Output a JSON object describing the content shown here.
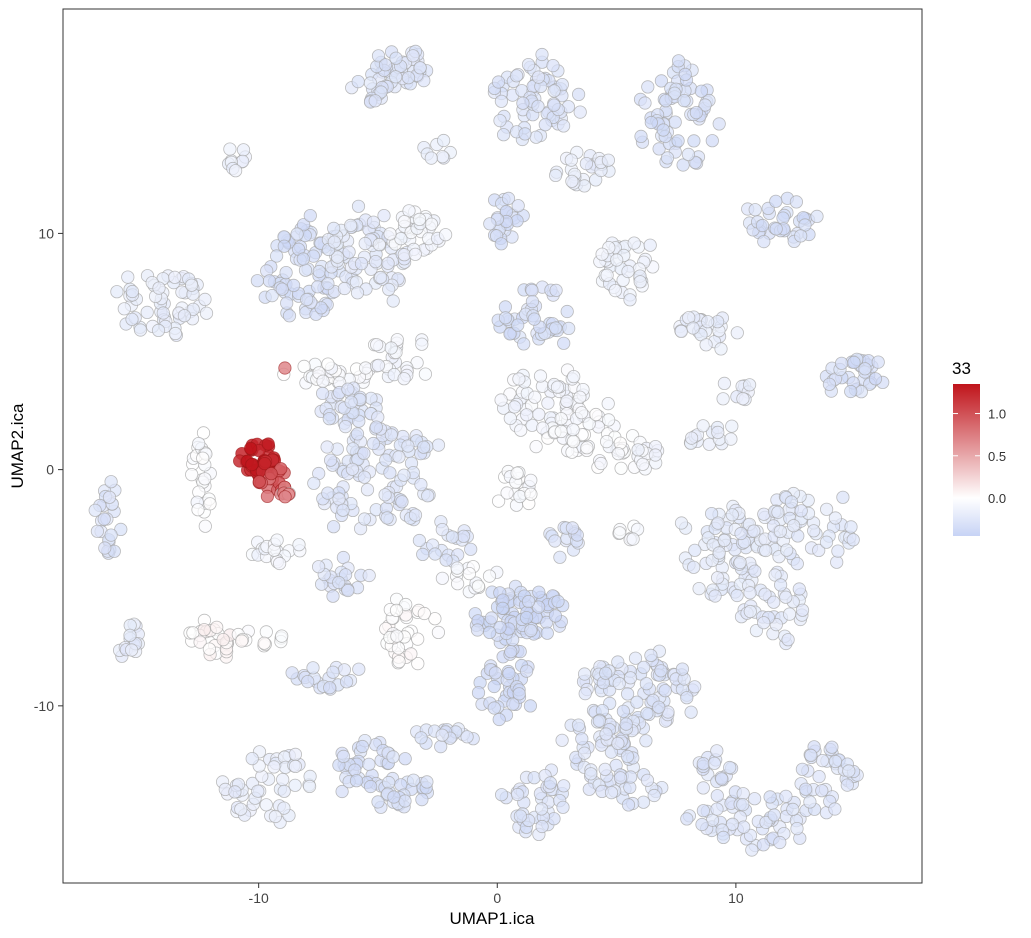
{
  "chart_data": {
    "type": "scatter",
    "title": "",
    "xlabel": "UMAP1.ica",
    "ylabel": "UMAP2.ica",
    "xlim": [
      -18.2,
      17.8
    ],
    "ylim": [
      -17.5,
      19.5
    ],
    "x_ticks": [
      -10,
      0,
      10
    ],
    "x_tick_labels": [
      "-10",
      "0",
      "10"
    ],
    "y_ticks": [
      -10,
      0,
      10
    ],
    "y_tick_labels": [
      "-10",
      "0",
      "10"
    ],
    "grid": false,
    "legend_position": "right",
    "color_scale": {
      "title": "33",
      "min": -0.45,
      "max": 1.35,
      "breaks": [
        1.0,
        0.5,
        0.0
      ],
      "break_labels": [
        "1.0",
        "0.5",
        "0.0"
      ],
      "low_color": "#c7d3f5",
      "mid_color": "#ffffff",
      "high_color": "#c0141b"
    },
    "clusters": [
      {
        "x": -4.0,
        "y": 17.0,
        "rx": 1.2,
        "ry": 0.9,
        "n": 40,
        "value": -0.3
      },
      {
        "x": -5.3,
        "y": 16.0,
        "rx": 0.8,
        "ry": 0.5,
        "n": 15,
        "value": -0.3
      },
      {
        "x": 1.6,
        "y": 15.5,
        "rx": 1.6,
        "ry": 1.8,
        "n": 70,
        "value": -0.3
      },
      {
        "x": 3.6,
        "y": 12.7,
        "rx": 1.2,
        "ry": 0.9,
        "n": 25,
        "value": -0.2
      },
      {
        "x": 7.5,
        "y": 15.0,
        "rx": 1.7,
        "ry": 2.1,
        "n": 70,
        "value": -0.35
      },
      {
        "x": -11.0,
        "y": 13.2,
        "rx": 0.5,
        "ry": 0.6,
        "n": 10,
        "value": -0.15
      },
      {
        "x": -2.4,
        "y": 13.5,
        "rx": 0.6,
        "ry": 0.5,
        "n": 8,
        "value": -0.2
      },
      {
        "x": 0.2,
        "y": 10.6,
        "rx": 0.9,
        "ry": 1.0,
        "n": 25,
        "value": -0.35
      },
      {
        "x": 11.9,
        "y": 10.5,
        "rx": 1.4,
        "ry": 1.0,
        "n": 35,
        "value": -0.35
      },
      {
        "x": -8.3,
        "y": 8.3,
        "rx": 1.7,
        "ry": 2.0,
        "n": 80,
        "value": -0.35
      },
      {
        "x": -5.5,
        "y": 9.0,
        "rx": 1.9,
        "ry": 2.0,
        "n": 80,
        "value": -0.25
      },
      {
        "x": -3.6,
        "y": 10.0,
        "rx": 1.3,
        "ry": 1.1,
        "n": 35,
        "value": -0.1
      },
      {
        "x": -14.0,
        "y": 7.0,
        "rx": 1.9,
        "ry": 1.3,
        "n": 60,
        "value": -0.2
      },
      {
        "x": 5.3,
        "y": 8.5,
        "rx": 1.2,
        "ry": 1.3,
        "n": 40,
        "value": -0.15
      },
      {
        "x": 8.8,
        "y": 5.8,
        "rx": 1.2,
        "ry": 0.9,
        "n": 25,
        "value": -0.2
      },
      {
        "x": 1.6,
        "y": 6.5,
        "rx": 1.6,
        "ry": 1.2,
        "n": 45,
        "value": -0.35
      },
      {
        "x": 14.8,
        "y": 4.0,
        "rx": 1.2,
        "ry": 1.0,
        "n": 35,
        "value": -0.35
      },
      {
        "x": -7.0,
        "y": 4.0,
        "rx": 1.9,
        "ry": 0.5,
        "n": 30,
        "value": -0.05
      },
      {
        "x": -4.0,
        "y": 4.8,
        "rx": 1.2,
        "ry": 1.0,
        "n": 25,
        "value": -0.1
      },
      {
        "x": -6.3,
        "y": 2.8,
        "rx": 1.2,
        "ry": 0.9,
        "n": 35,
        "value": -0.3
      },
      {
        "x": 2.0,
        "y": 2.8,
        "rx": 1.9,
        "ry": 1.5,
        "n": 60,
        "value": -0.1
      },
      {
        "x": 3.8,
        "y": 1.3,
        "rx": 1.8,
        "ry": 1.3,
        "n": 45,
        "value": -0.05
      },
      {
        "x": 6.2,
        "y": 0.5,
        "rx": 0.9,
        "ry": 0.6,
        "n": 15,
        "value": -0.1
      },
      {
        "x": 8.8,
        "y": 1.4,
        "rx": 1.0,
        "ry": 0.6,
        "n": 15,
        "value": -0.2
      },
      {
        "x": 10.0,
        "y": 3.4,
        "rx": 0.8,
        "ry": 0.5,
        "n": 10,
        "value": -0.2
      },
      {
        "x": 0.8,
        "y": -0.8,
        "rx": 0.8,
        "ry": 0.8,
        "n": 20,
        "value": -0.05
      },
      {
        "x": -5.0,
        "y": -0.3,
        "rx": 2.4,
        "ry": 2.2,
        "n": 110,
        "value": -0.3
      },
      {
        "x": -12.5,
        "y": -0.5,
        "rx": 0.5,
        "ry": 2.0,
        "n": 25,
        "value": -0.05
      },
      {
        "x": -16.2,
        "y": -2.2,
        "rx": 0.6,
        "ry": 1.7,
        "n": 25,
        "value": -0.3
      },
      {
        "x": -9.5,
        "y": -3.4,
        "rx": 1.3,
        "ry": 0.5,
        "n": 18,
        "value": -0.1
      },
      {
        "x": -6.5,
        "y": -4.6,
        "rx": 1.1,
        "ry": 0.9,
        "n": 25,
        "value": -0.3
      },
      {
        "x": -2.2,
        "y": -3.1,
        "rx": 1.0,
        "ry": 0.9,
        "n": 20,
        "value": -0.3
      },
      {
        "x": -1.0,
        "y": -4.5,
        "rx": 1.1,
        "ry": 0.6,
        "n": 15,
        "value": -0.05
      },
      {
        "x": 3.0,
        "y": -3.1,
        "rx": 0.7,
        "ry": 0.8,
        "n": 15,
        "value": -0.3
      },
      {
        "x": 5.3,
        "y": -2.8,
        "rx": 0.6,
        "ry": 0.5,
        "n": 8,
        "value": -0.05
      },
      {
        "x": 10.0,
        "y": -3.5,
        "rx": 2.1,
        "ry": 1.9,
        "n": 80,
        "value": -0.25
      },
      {
        "x": 13.0,
        "y": -2.5,
        "rx": 2.0,
        "ry": 1.5,
        "n": 55,
        "value": -0.25
      },
      {
        "x": 11.6,
        "y": -6.0,
        "rx": 1.2,
        "ry": 1.4,
        "n": 35,
        "value": -0.25
      },
      {
        "x": -3.6,
        "y": -6.8,
        "rx": 1.1,
        "ry": 1.4,
        "n": 35,
        "value": 0.0
      },
      {
        "x": 0.4,
        "y": -6.5,
        "rx": 1.3,
        "ry": 1.5,
        "n": 55,
        "value": -0.4
      },
      {
        "x": 1.8,
        "y": -6.0,
        "rx": 1.0,
        "ry": 1.0,
        "n": 30,
        "value": -0.4
      },
      {
        "x": 0.3,
        "y": -9.3,
        "rx": 1.1,
        "ry": 1.3,
        "n": 35,
        "value": -0.4
      },
      {
        "x": -15.5,
        "y": -7.2,
        "rx": 0.6,
        "ry": 0.9,
        "n": 15,
        "value": -0.2
      },
      {
        "x": -12.0,
        "y": -7.2,
        "rx": 1.1,
        "ry": 0.8,
        "n": 25,
        "value": 0.05
      },
      {
        "x": -10.0,
        "y": -7.1,
        "rx": 1.1,
        "ry": 0.4,
        "n": 12,
        "value": 0.0
      },
      {
        "x": -7.0,
        "y": -8.8,
        "rx": 1.4,
        "ry": 0.6,
        "n": 20,
        "value": -0.3
      },
      {
        "x": 6.0,
        "y": -9.5,
        "rx": 2.4,
        "ry": 1.6,
        "n": 90,
        "value": -0.3
      },
      {
        "x": 4.3,
        "y": -11.5,
        "rx": 1.7,
        "ry": 1.3,
        "n": 45,
        "value": -0.3
      },
      {
        "x": 5.2,
        "y": -13.3,
        "rx": 1.5,
        "ry": 0.9,
        "n": 30,
        "value": -0.3
      },
      {
        "x": 1.5,
        "y": -14.0,
        "rx": 1.3,
        "ry": 1.5,
        "n": 40,
        "value": -0.3
      },
      {
        "x": -5.2,
        "y": -12.5,
        "rx": 1.4,
        "ry": 1.3,
        "n": 40,
        "value": -0.35
      },
      {
        "x": -4.0,
        "y": -13.6,
        "rx": 1.2,
        "ry": 0.7,
        "n": 25,
        "value": -0.35
      },
      {
        "x": -2.3,
        "y": -11.3,
        "rx": 1.3,
        "ry": 0.4,
        "n": 18,
        "value": -0.3
      },
      {
        "x": -9.6,
        "y": -13.3,
        "rx": 1.8,
        "ry": 1.5,
        "n": 50,
        "value": -0.2
      },
      {
        "x": 10.6,
        "y": -14.8,
        "rx": 2.3,
        "ry": 1.1,
        "n": 60,
        "value": -0.3
      },
      {
        "x": 13.8,
        "y": -13.0,
        "rx": 1.2,
        "ry": 1.6,
        "n": 40,
        "value": -0.3
      },
      {
        "x": 9.0,
        "y": -12.8,
        "rx": 0.8,
        "ry": 1.0,
        "n": 18,
        "value": -0.3
      },
      {
        "x": -9.9,
        "y": 0.4,
        "rx": 0.8,
        "ry": 0.7,
        "n": 40,
        "value": 1.3
      },
      {
        "x": -9.2,
        "y": -0.4,
        "rx": 0.7,
        "ry": 0.6,
        "n": 14,
        "value": 0.9
      },
      {
        "x": -9.2,
        "y": -1.1,
        "rx": 0.5,
        "ry": 0.5,
        "n": 8,
        "value": 0.7
      },
      {
        "x": -8.9,
        "y": 4.3,
        "rx": 0.2,
        "ry": 0.2,
        "n": 1,
        "value": 0.6
      }
    ]
  }
}
